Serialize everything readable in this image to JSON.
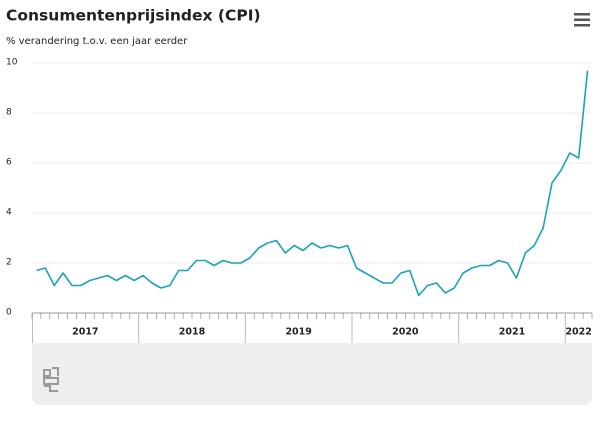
{
  "chart_data": {
    "type": "line",
    "title": "Consumentenprijsindex (CPI)",
    "subtitle": "% verandering t.o.v. een jaar eerder",
    "x": [
      "2017",
      "2017",
      "2017",
      "2017",
      "2017",
      "2017",
      "2017",
      "2017",
      "2017",
      "2017",
      "2017",
      "2017",
      "2018",
      "2018",
      "2018",
      "2018",
      "2018",
      "2018",
      "2018",
      "2018",
      "2018",
      "2018",
      "2018",
      "2018",
      "2019",
      "2019",
      "2019",
      "2019",
      "2019",
      "2019",
      "2019",
      "2019",
      "2019",
      "2019",
      "2019",
      "2019",
      "2020",
      "2020",
      "2020",
      "2020",
      "2020",
      "2020",
      "2020",
      "2020",
      "2020",
      "2020",
      "2020",
      "2020",
      "2021",
      "2021",
      "2021",
      "2021",
      "2021",
      "2021",
      "2021",
      "2021",
      "2021",
      "2021",
      "2021",
      "2021",
      "2022",
      "2022",
      "2022"
    ],
    "xticks": [
      "2017",
      "2018",
      "2019",
      "2020",
      "2021",
      "2022"
    ],
    "series": [
      {
        "name": "CPI",
        "color": "#1ba3b6",
        "values": [
          1.7,
          1.8,
          1.1,
          1.6,
          1.1,
          1.1,
          1.3,
          1.4,
          1.5,
          1.3,
          1.5,
          1.3,
          1.5,
          1.2,
          1.0,
          1.1,
          1.7,
          1.7,
          2.1,
          2.1,
          1.9,
          2.1,
          2.0,
          2.0,
          2.2,
          2.6,
          2.8,
          2.9,
          2.4,
          2.7,
          2.5,
          2.8,
          2.6,
          2.7,
          2.6,
          2.7,
          1.8,
          1.6,
          1.4,
          1.2,
          1.2,
          1.6,
          1.7,
          0.7,
          1.1,
          1.2,
          0.8,
          1.0,
          1.6,
          1.8,
          1.9,
          1.9,
          2.1,
          2.0,
          1.4,
          2.4,
          2.7,
          3.4,
          5.2,
          5.7,
          6.4,
          6.2,
          9.7
        ]
      }
    ],
    "ylim": [
      0,
      10
    ],
    "yticks": [
      0,
      2,
      4,
      6,
      8,
      10
    ],
    "grid": true
  }
}
